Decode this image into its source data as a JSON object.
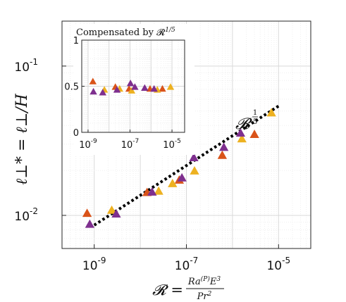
{
  "chart_data": [
    {
      "type": "scatter",
      "x_scale": "log",
      "y_scale": "log",
      "xlim": [
        2e-10,
        5e-05
      ],
      "ylim": [
        0.006,
        0.2
      ],
      "grid": true,
      "xlabel_lhs": "𝓡 =",
      "xlabel_num": "Ra",
      "xlabel_num_sup": "(P)",
      "xlabel_num_tail": "E",
      "xlabel_num_tail_sup": "3",
      "xlabel_den": "Pr",
      "xlabel_den_sup": "2",
      "ylabel": "ℓ⊥* = ℓ⊥/H",
      "x_ticks": [
        {
          "value": 1e-09,
          "base": "10",
          "exp": "-9"
        },
        {
          "value": 1e-07,
          "base": "10",
          "exp": "-7"
        },
        {
          "value": 1e-05,
          "base": "10",
          "exp": "-5"
        }
      ],
      "y_ticks": [
        {
          "value": 0.01,
          "base": "10",
          "exp": "-2"
        },
        {
          "value": 0.1,
          "base": "10",
          "exp": "-1"
        }
      ],
      "fit_line": {
        "x": [
          1e-09,
          1e-05
        ],
        "y": [
          0.0086,
          0.054
        ],
        "style": "dotted",
        "color": "#000000"
      },
      "fit_label": {
        "base": "𝓡",
        "exp_num": "1",
        "exp_den": "5"
      },
      "series": [
        {
          "color": "#d95319",
          "points": [
            [
              7e-10,
              0.0103
            ],
            [
              1.4e-08,
              0.0142
            ],
            [
              7e-08,
              0.0172
            ],
            [
              6e-07,
              0.0252
            ],
            [
              3e-06,
              0.0348
            ]
          ]
        },
        {
          "color": "#edb120",
          "points": [
            [
              2.4e-09,
              0.0108
            ],
            [
              2.5e-08,
              0.0145
            ],
            [
              5e-08,
              0.0163
            ],
            [
              1.5e-07,
              0.0198
            ],
            [
              1.6e-06,
              0.0325
            ],
            [
              7e-06,
              0.0485
            ]
          ]
        },
        {
          "color": "#7e2f8e",
          "points": [
            [
              8e-10,
              0.0087
            ],
            [
              3e-09,
              0.0102
            ],
            [
              1.8e-08,
              0.0143
            ],
            [
              8e-08,
              0.0178
            ],
            [
              1.45e-07,
              0.0243
            ],
            [
              6.5e-07,
              0.0285
            ],
            [
              1.5e-06,
              0.0355
            ]
          ]
        }
      ]
    },
    {
      "type": "scatter",
      "x_scale": "log",
      "y_scale": "linear",
      "title": "Compensated by 𝓡",
      "title_exp": "1/5",
      "xlim": [
        5e-10,
        4e-05
      ],
      "ylim": [
        0,
        1
      ],
      "grid": true,
      "x_ticks": [
        {
          "value": 1e-09,
          "base": "10",
          "exp": "-9"
        },
        {
          "value": 1e-07,
          "base": "10",
          "exp": "-7"
        },
        {
          "value": 1e-05,
          "base": "10",
          "exp": "-5"
        }
      ],
      "y_ticks": [
        {
          "value": 0,
          "label": "0"
        },
        {
          "value": 0.5,
          "label": "0.5"
        },
        {
          "value": 1,
          "label": "1"
        }
      ],
      "series": [
        {
          "color": "#d95319",
          "points": [
            [
              1.7e-09,
              0.55
            ],
            [
              2e-08,
              0.49
            ],
            [
              9e-08,
              0.47
            ],
            [
              9e-07,
              0.47
            ],
            [
              3.5e-06,
              0.47
            ]
          ]
        },
        {
          "color": "#edb120",
          "points": [
            [
              6e-09,
              0.46
            ],
            [
              3.2e-08,
              0.47
            ],
            [
              1.2e-07,
              0.45
            ],
            [
              2e-06,
              0.46
            ],
            [
              8.5e-06,
              0.49
            ]
          ]
        },
        {
          "color": "#7e2f8e",
          "points": [
            [
              1.8e-09,
              0.44
            ],
            [
              5e-09,
              0.43
            ],
            [
              2.4e-08,
              0.46
            ],
            [
              1.05e-07,
              0.53
            ],
            [
              1.7e-07,
              0.49
            ],
            [
              5e-07,
              0.48
            ],
            [
              1.4e-06,
              0.47
            ]
          ]
        }
      ]
    }
  ]
}
